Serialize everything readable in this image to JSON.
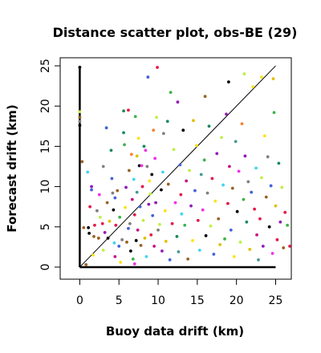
{
  "chart_data": {
    "type": "scatter",
    "title": "Distance scatter plot, obs-BE (29)",
    "xlabel": "Buoy data drift (km)",
    "ylabel": "Forecast drift (km)",
    "xlim": [
      -2.5,
      27
    ],
    "ylim": [
      -1.5,
      26
    ],
    "xticks": [
      0,
      5,
      10,
      15,
      20,
      25
    ],
    "yticks": [
      0,
      5,
      10,
      15,
      20,
      25
    ],
    "grid": false,
    "diagonal_line": [
      [
        0,
        0
      ],
      [
        25,
        25
      ]
    ],
    "reference_axes": {
      "x_segment": [
        0,
        25
      ],
      "y_segment": [
        0,
        25
      ]
    },
    "point_colors": [
      "#000000",
      "#e6194b",
      "#3cb44b",
      "#ffe119",
      "#4363d8",
      "#f58231",
      "#911eb4",
      "#42d4f4",
      "#f032e6",
      "#bfef45",
      "#469990",
      "#9a6324",
      "#808080",
      "#1a8a5a",
      "#c71585",
      "#e0c000"
    ],
    "points": [
      [
        0.0,
        24.8,
        0
      ],
      [
        0.0,
        19.3,
        9
      ],
      [
        0.0,
        18.6,
        11
      ],
      [
        0.0,
        18.1,
        12
      ],
      [
        0.0,
        17.6,
        0
      ],
      [
        0.3,
        13.1,
        11
      ],
      [
        0.5,
        4.9,
        11
      ],
      [
        0.8,
        0.3,
        11
      ],
      [
        1.0,
        11.8,
        7
      ],
      [
        1.1,
        4.9,
        0
      ],
      [
        1.2,
        4.2,
        0
      ],
      [
        1.3,
        7.5,
        1
      ],
      [
        1.5,
        10.0,
        6
      ],
      [
        1.5,
        9.6,
        4
      ],
      [
        1.7,
        1.5,
        3
      ],
      [
        1.8,
        3.8,
        11
      ],
      [
        1.9,
        5.2,
        1
      ],
      [
        2.2,
        7.0,
        12
      ],
      [
        2.4,
        3.6,
        11
      ],
      [
        2.5,
        9.0,
        8
      ],
      [
        2.6,
        6.2,
        9
      ],
      [
        2.9,
        5.4,
        1
      ],
      [
        3.0,
        2.1,
        9
      ],
      [
        3.2,
        4.3,
        6
      ],
      [
        3.4,
        17.3,
        4
      ],
      [
        3.5,
        8.0,
        11
      ],
      [
        3.6,
        3.6,
        0
      ],
      [
        3.8,
        5.7,
        15
      ],
      [
        4.0,
        14.5,
        13
      ],
      [
        4.1,
        11.0,
        4
      ],
      [
        4.2,
        9.2,
        12
      ],
      [
        4.3,
        7.1,
        0
      ],
      [
        4.4,
        3.0,
        7
      ],
      [
        4.5,
        1.3,
        14
      ],
      [
        4.6,
        5.2,
        1
      ],
      [
        4.8,
        9.5,
        11
      ],
      [
        5.0,
        2.6,
        4
      ],
      [
        5.1,
        6.2,
        2
      ],
      [
        5.2,
        0.6,
        3
      ],
      [
        5.4,
        3.4,
        12
      ],
      [
        5.6,
        19.4,
        13
      ],
      [
        5.6,
        16.7,
        13
      ],
      [
        5.7,
        15.2,
        2
      ],
      [
        5.8,
        7.4,
        3
      ],
      [
        5.9,
        9.9,
        6
      ],
      [
        6.0,
        3.1,
        11
      ],
      [
        6.2,
        19.5,
        1
      ],
      [
        6.2,
        4.8,
        4
      ],
      [
        6.3,
        12.0,
        11
      ],
      [
        6.4,
        5.4,
        12
      ],
      [
        6.5,
        2.0,
        0
      ],
      [
        6.6,
        14.0,
        5
      ],
      [
        6.7,
        8.4,
        14
      ],
      [
        6.8,
        1.0,
        2
      ],
      [
        6.9,
        10.9,
        7
      ],
      [
        7.0,
        0.4,
        8
      ],
      [
        7.0,
        6.5,
        1
      ],
      [
        7.1,
        18.7,
        2
      ],
      [
        7.2,
        3.3,
        0
      ],
      [
        7.3,
        9.3,
        10
      ],
      [
        7.4,
        4.6,
        14
      ],
      [
        7.5,
        16.0,
        3
      ],
      [
        7.6,
        12.6,
        0
      ],
      [
        7.7,
        7.5,
        4
      ],
      [
        7.8,
        2.7,
        11
      ],
      [
        7.9,
        12.6,
        8
      ],
      [
        8.0,
        10.0,
        1
      ],
      [
        8.1,
        5.8,
        9
      ],
      [
        8.2,
        15.0,
        13
      ],
      [
        8.3,
        3.6,
        15
      ],
      [
        8.4,
        14.5,
        8
      ],
      [
        8.5,
        1.3,
        7
      ],
      [
        8.6,
        12.5,
        12
      ],
      [
        8.7,
        23.6,
        4
      ],
      [
        8.8,
        7.8,
        6
      ],
      [
        8.9,
        10.7,
        3
      ],
      [
        9.0,
        9.1,
        9
      ],
      [
        9.1,
        4.0,
        1
      ],
      [
        9.2,
        11.5,
        0
      ],
      [
        9.3,
        6.4,
        4
      ],
      [
        9.4,
        17.0,
        5
      ],
      [
        9.5,
        2.6,
        14
      ],
      [
        9.6,
        13.5,
        8
      ],
      [
        9.7,
        8.0,
        6
      ],
      [
        9.9,
        24.8,
        1
      ],
      [
        10.0,
        4.6,
        12
      ],
      [
        10.2,
        5.3,
        9
      ],
      [
        10.4,
        9.6,
        0
      ],
      [
        10.5,
        2.0,
        6
      ],
      [
        10.6,
        11.8,
        7
      ],
      [
        10.7,
        16.6,
        12
      ],
      [
        10.9,
        7.0,
        3
      ],
      [
        11.0,
        3.2,
        15
      ],
      [
        11.2,
        18.1,
        13
      ],
      [
        11.3,
        10.3,
        11
      ],
      [
        11.5,
        0.9,
        4
      ],
      [
        11.6,
        21.7,
        2
      ],
      [
        11.8,
        5.4,
        1
      ],
      [
        12.0,
        14.6,
        9
      ],
      [
        12.2,
        8.0,
        8
      ],
      [
        12.4,
        3.8,
        13
      ],
      [
        12.6,
        1.9,
        10
      ],
      [
        12.8,
        12.7,
        4
      ],
      [
        12.9,
        9.0,
        1
      ],
      [
        13.0,
        6.6,
        7
      ],
      [
        13.2,
        17.0,
        0
      ],
      [
        13.4,
        5.2,
        2
      ],
      [
        13.6,
        10.7,
        14
      ],
      [
        13.8,
        1.0,
        11
      ],
      [
        14.0,
        12.0,
        9
      ],
      [
        14.2,
        7.6,
        6
      ],
      [
        14.4,
        3.3,
        3
      ],
      [
        14.5,
        18.2,
        15
      ],
      [
        14.7,
        9.5,
        4
      ],
      [
        14.9,
        15.1,
        3
      ],
      [
        15.1,
        5.8,
        1
      ],
      [
        15.3,
        2.1,
        7
      ],
      [
        15.5,
        11.5,
        10
      ],
      [
        15.7,
        7.1,
        8
      ],
      [
        15.9,
        13.3,
        2
      ],
      [
        16.1,
        3.9,
        0
      ],
      [
        16.3,
        9.2,
        12
      ],
      [
        16.5,
        17.5,
        13
      ],
      [
        16.7,
        5.1,
        9
      ],
      [
        16.9,
        11.0,
        1
      ],
      [
        17.1,
        1.6,
        4
      ],
      [
        17.3,
        8.2,
        3
      ],
      [
        17.5,
        14.1,
        6
      ],
      [
        17.7,
        6.0,
        11
      ],
      [
        17.9,
        2.8,
        15
      ],
      [
        18.1,
        16.1,
        9
      ],
      [
        18.3,
        10.2,
        7
      ],
      [
        18.5,
        3.5,
        2
      ],
      [
        18.7,
        19.0,
        6
      ],
      [
        18.9,
        7.9,
        1
      ],
      [
        19.1,
        12.5,
        14
      ],
      [
        19.3,
        4.6,
        4
      ],
      [
        19.5,
        9.8,
        11
      ],
      [
        19.7,
        1.3,
        3
      ],
      [
        19.9,
        15.6,
        10
      ],
      [
        20.1,
        6.9,
        0
      ],
      [
        20.3,
        11.9,
        8
      ],
      [
        20.5,
        3.1,
        9
      ],
      [
        20.7,
        17.8,
        5
      ],
      [
        20.9,
        8.4,
        2
      ],
      [
        21.1,
        13.8,
        6
      ],
      [
        21.3,
        5.6,
        13
      ],
      [
        21.5,
        10.6,
        12
      ],
      [
        21.7,
        2.2,
        15
      ],
      [
        21.9,
        9.3,
        4
      ],
      [
        22.1,
        22.4,
        3
      ],
      [
        22.3,
        7.2,
        1
      ],
      [
        22.5,
        12.3,
        7
      ],
      [
        22.6,
        4.0,
        14
      ],
      [
        22.8,
        0.9,
        10
      ],
      [
        23.0,
        6.0,
        1
      ],
      [
        23.2,
        11.1,
        9
      ],
      [
        23.4,
        2.6,
        6
      ],
      [
        23.6,
        16.3,
        3
      ],
      [
        23.8,
        8.7,
        11
      ],
      [
        24.0,
        13.7,
        12
      ],
      [
        24.2,
        5.0,
        0
      ],
      [
        24.4,
        10.1,
        4
      ],
      [
        24.6,
        1.7,
        8
      ],
      [
        24.8,
        19.2,
        2
      ],
      [
        25.0,
        7.6,
        15
      ],
      [
        25.2,
        3.4,
        1
      ],
      [
        25.4,
        12.9,
        13
      ],
      [
        25.6,
        5.6,
        6
      ],
      [
        25.8,
        9.9,
        9
      ],
      [
        26.0,
        2.4,
        11
      ],
      [
        26.2,
        6.8,
        1
      ],
      [
        26.5,
        5.2,
        2
      ],
      [
        26.8,
        2.6,
        1
      ],
      [
        3.0,
        12.5,
        12
      ],
      [
        4.5,
        8.6,
        4
      ],
      [
        7.3,
        13.8,
        15
      ],
      [
        9.8,
        18.6,
        9
      ],
      [
        12.5,
        20.5,
        6
      ],
      [
        16.0,
        21.2,
        11
      ],
      [
        19.0,
        23.0,
        0
      ],
      [
        21.0,
        24.0,
        9
      ],
      [
        23.2,
        23.6,
        3
      ],
      [
        24.7,
        23.4,
        15
      ]
    ]
  }
}
